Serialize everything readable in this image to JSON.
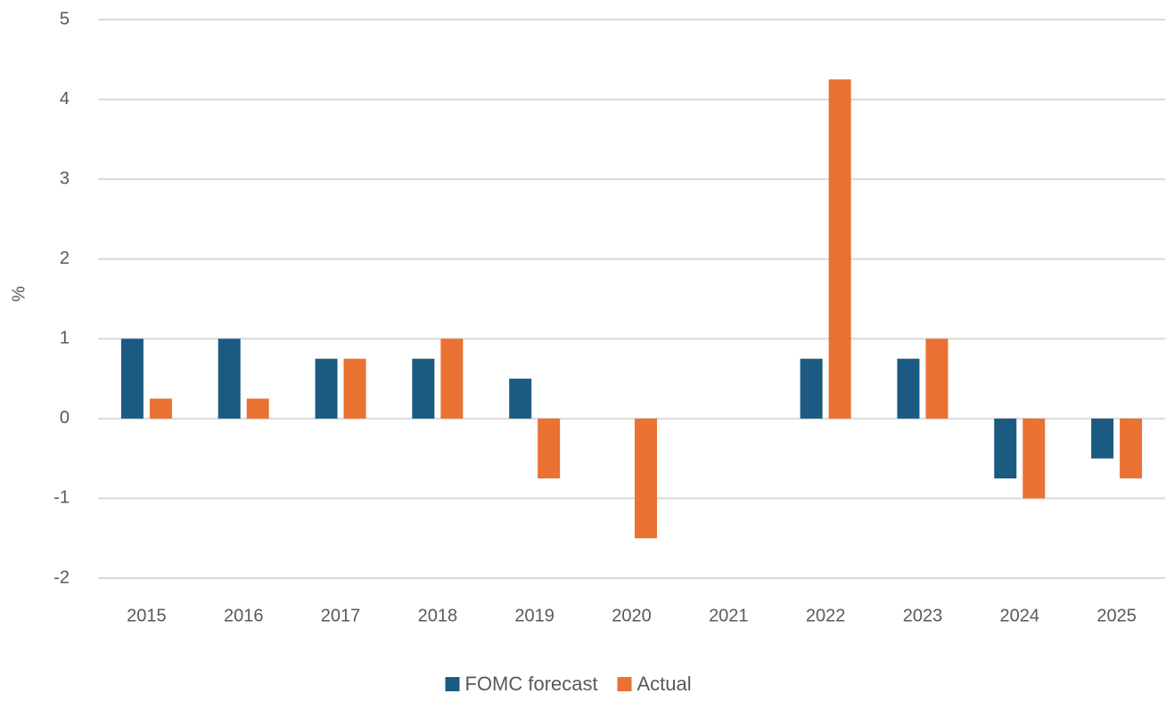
{
  "chart_data": {
    "type": "bar",
    "y_label": "%",
    "categories": [
      "2015",
      "2016",
      "2017",
      "2018",
      "2019",
      "2020",
      "2021",
      "2022",
      "2023",
      "2024",
      "2025"
    ],
    "series": [
      {
        "name": "FOMC forecast",
        "color": "#1b5b82",
        "values": [
          1,
          1,
          0.75,
          0.75,
          0.5,
          0,
          0,
          0.75,
          0.75,
          -0.75,
          -0.5
        ]
      },
      {
        "name": "Actual",
        "color": "#e97132",
        "values": [
          0.25,
          0.25,
          0.75,
          1,
          -0.75,
          -1.5,
          0,
          4.25,
          1,
          -1,
          -0.75
        ]
      }
    ],
    "ylim": [
      -2,
      5
    ],
    "yticks": [
      -2,
      -1,
      0,
      1,
      2,
      3,
      4,
      5
    ],
    "grid": true,
    "legend": "bottom"
  }
}
